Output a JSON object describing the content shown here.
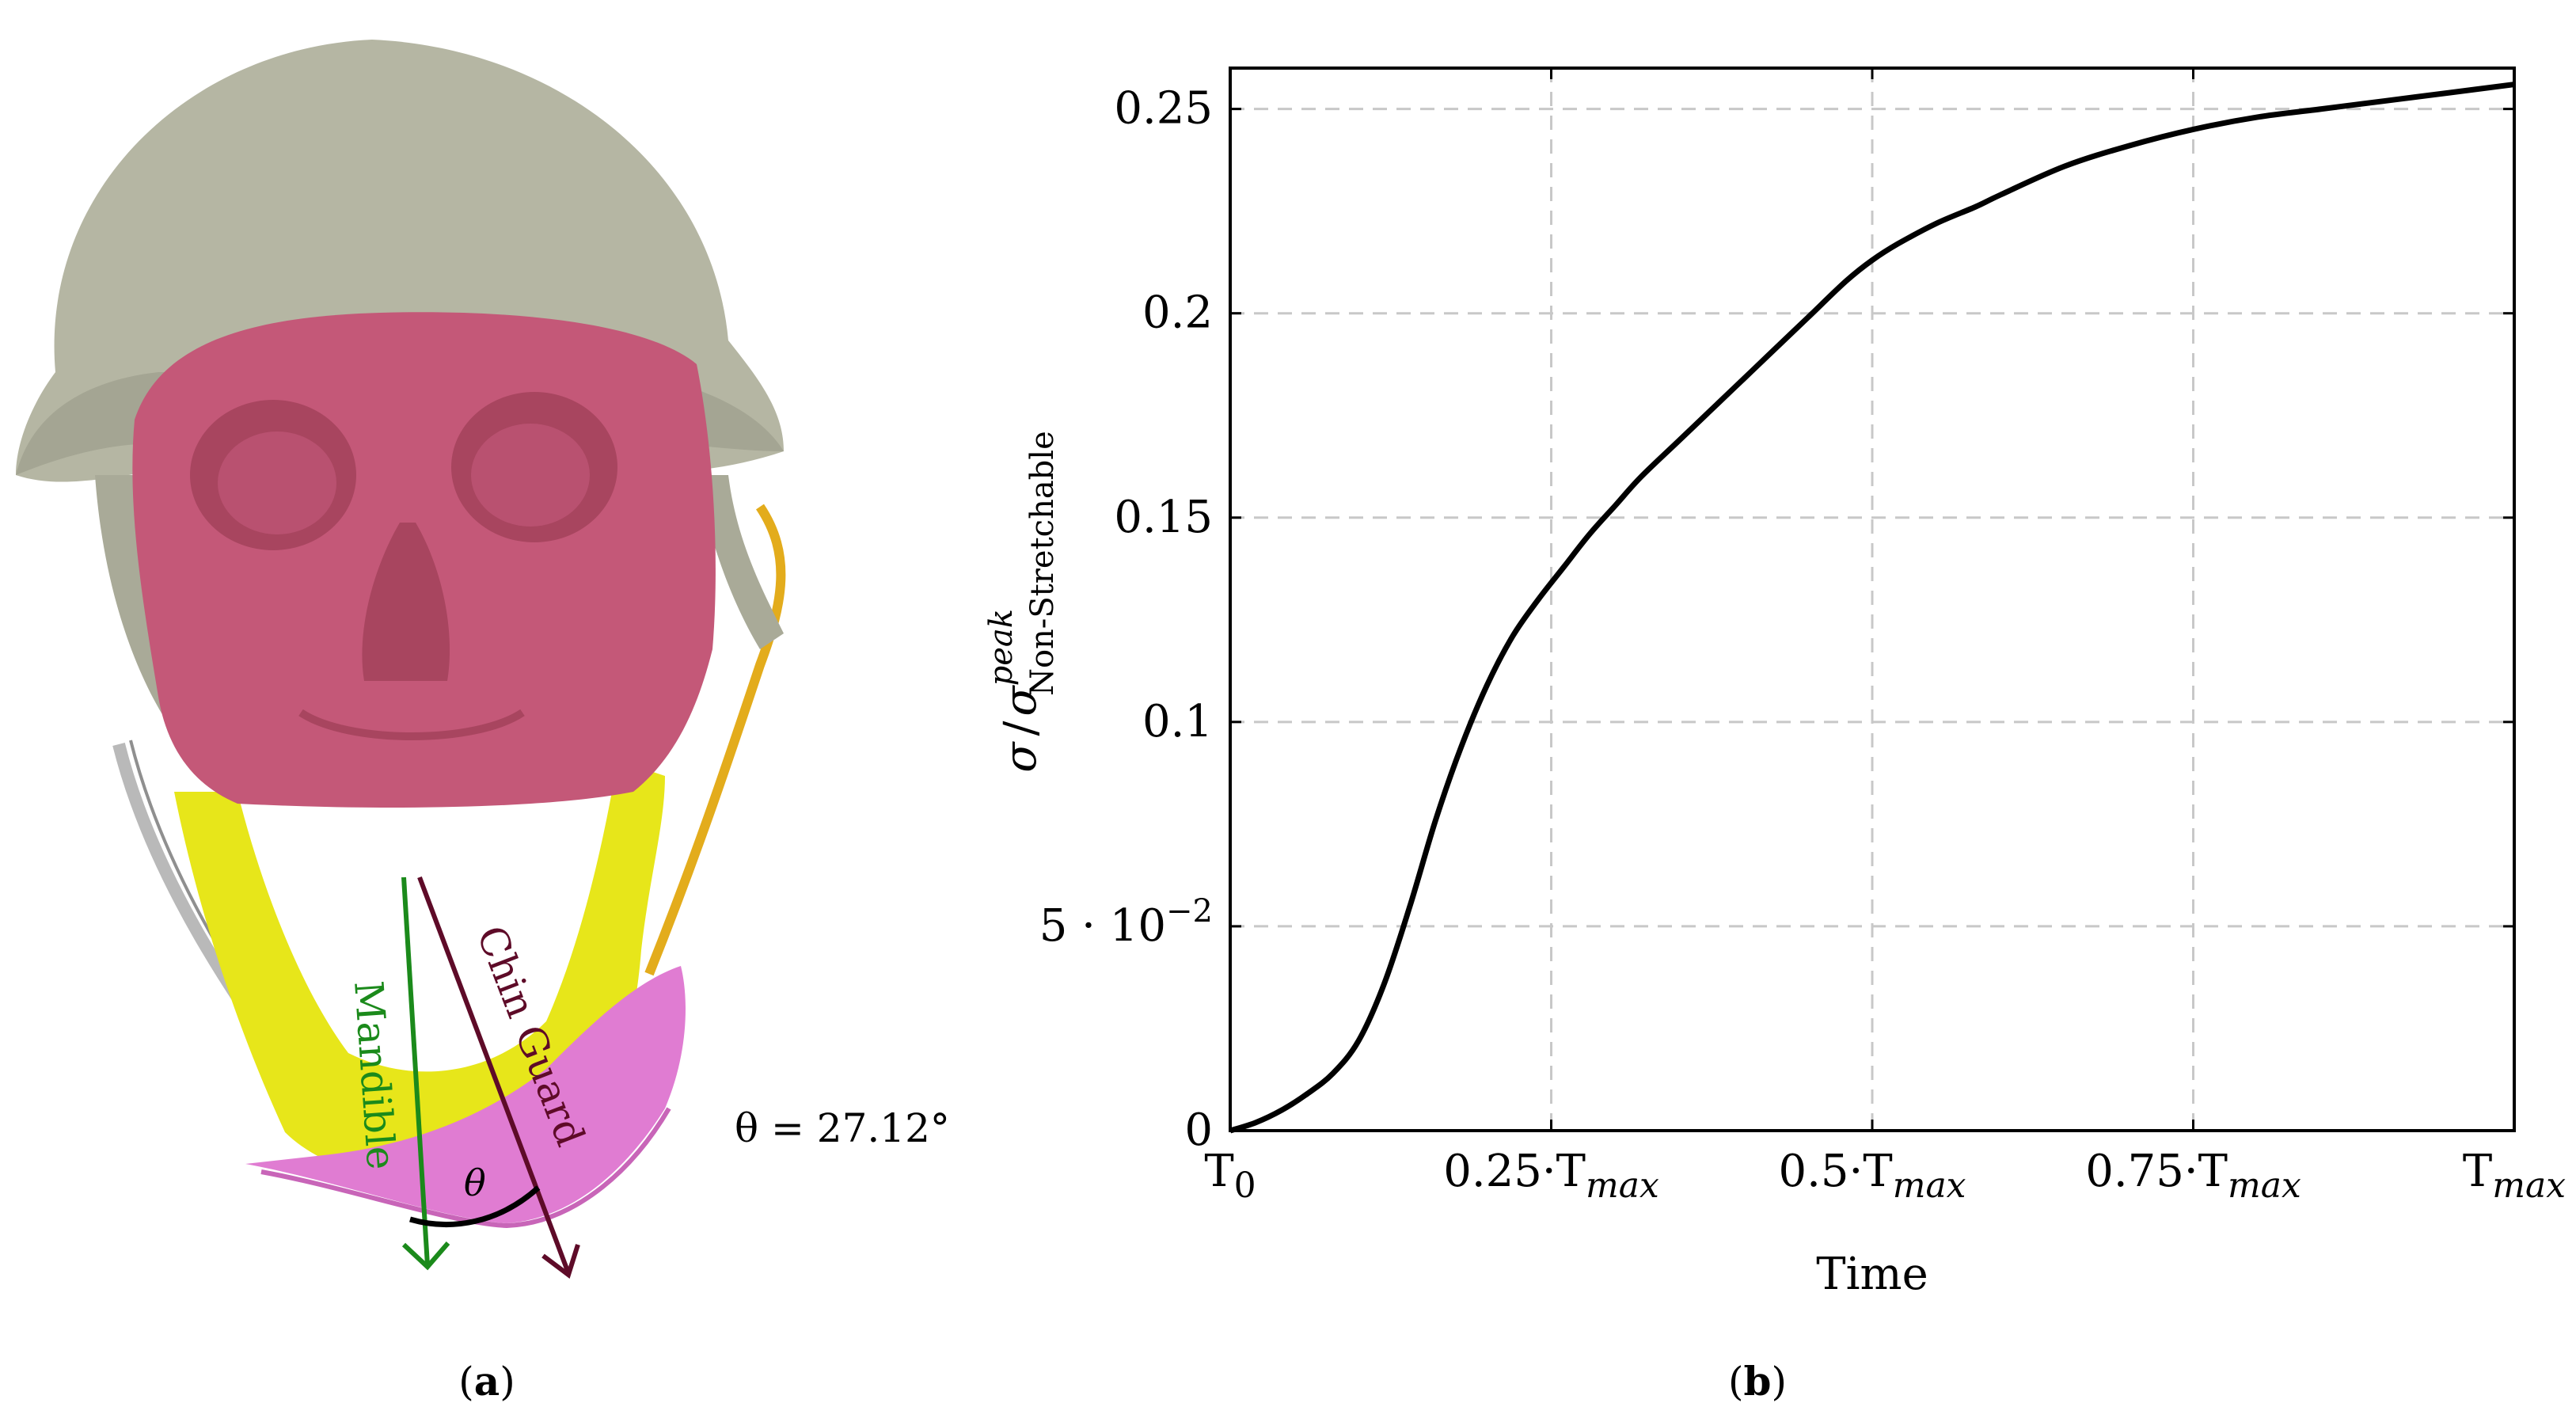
{
  "panel_a": {
    "caption": "(a)",
    "caption_open": "(",
    "caption_letter": "a",
    "caption_close": ")",
    "label_mandible": "Mandible",
    "label_chin_guard": "Chin Guard",
    "angle_symbol": "θ",
    "angle_text": "θ = 27.12°",
    "colors": {
      "helmet": "#b5b6a3",
      "skull": "#c45878",
      "mandible": "#e7e61a",
      "chin_guard": "#e07cd2",
      "strap": "#e3ac1c",
      "mandible_arrow": "#1b8a1b",
      "chin_guard_arrow": "#5e0b28"
    }
  },
  "panel_b": {
    "caption": "(b)",
    "caption_open": "(",
    "caption_letter": "b",
    "caption_close": ")",
    "chart_data": {
      "type": "line",
      "title": "",
      "xlabel": "Time",
      "ylabel_parts": {
        "sigma": "σ",
        "slash": "/",
        "sigma2": "σ",
        "superscript": "peak",
        "subscript": "Non-Stretchable"
      },
      "x_unit": "T_max",
      "xlim": [
        0,
        1
      ],
      "ylim": [
        0,
        0.26
      ],
      "xticks": [
        {
          "value": 0,
          "label": "T",
          "sub": "0"
        },
        {
          "value": 0.25,
          "label": "0.25·T",
          "sub": "max"
        },
        {
          "value": 0.5,
          "label": "0.5·T",
          "sub": "max"
        },
        {
          "value": 0.75,
          "label": "0.75·T",
          "sub": "max"
        },
        {
          "value": 1,
          "label": "T",
          "sub": "max"
        }
      ],
      "yticks": [
        {
          "value": 0,
          "label": "0"
        },
        {
          "value": 0.05,
          "label": "5 · 10",
          "sup": "−2"
        },
        {
          "value": 0.1,
          "label": "0.1"
        },
        {
          "value": 0.15,
          "label": "0.15"
        },
        {
          "value": 0.2,
          "label": "0.2"
        },
        {
          "value": 0.25,
          "label": "0.25"
        }
      ],
      "grid": true,
      "grid_style": "dashed",
      "series": [
        {
          "color": "#000000",
          "x": [
            0,
            0.02,
            0.04,
            0.06,
            0.08,
            0.1,
            0.12,
            0.14,
            0.16,
            0.18,
            0.2,
            0.22,
            0.24,
            0.26,
            0.28,
            0.3,
            0.32,
            0.35,
            0.38,
            0.4,
            0.42,
            0.45,
            0.48,
            0.5,
            0.52,
            0.55,
            0.58,
            0.6,
            0.65,
            0.7,
            0.75,
            0.8,
            0.85,
            0.9,
            0.95,
            1.0
          ],
          "values": [
            0.0,
            0.002,
            0.005,
            0.009,
            0.014,
            0.022,
            0.036,
            0.055,
            0.076,
            0.094,
            0.109,
            0.121,
            0.13,
            0.138,
            0.146,
            0.153,
            0.16,
            0.169,
            0.178,
            0.184,
            0.19,
            0.199,
            0.208,
            0.213,
            0.217,
            0.222,
            0.226,
            0.229,
            0.236,
            0.241,
            0.245,
            0.248,
            0.25,
            0.252,
            0.254,
            0.256
          ]
        }
      ]
    }
  }
}
